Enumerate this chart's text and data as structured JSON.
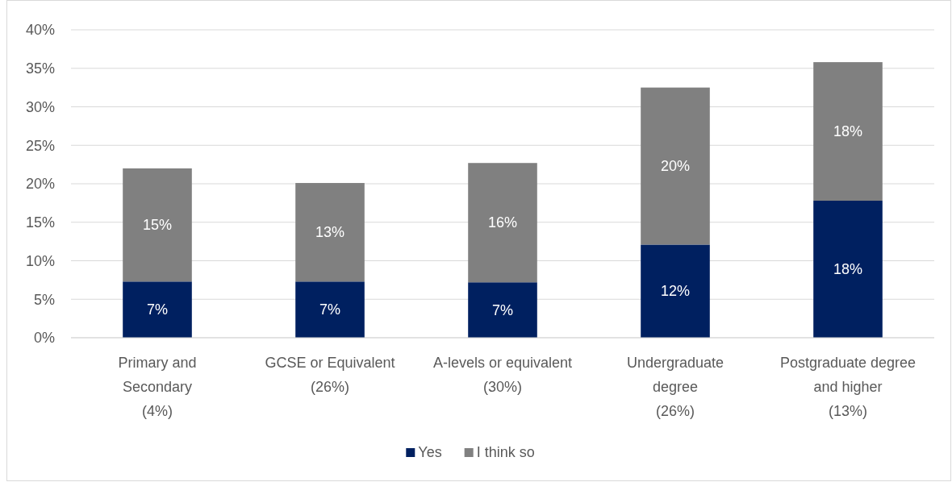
{
  "chart_data": {
    "type": "bar",
    "stacked": true,
    "categories": [
      "Primary and\nSecondary\n(4%)",
      "GCSE or Equivalent\n(26%)",
      "A-levels or equivalent\n(30%)",
      "Undergraduate\ndegree\n(26%)",
      "Postgraduate degree\nand higher\n(13%)"
    ],
    "series": [
      {
        "name": "Yes",
        "color": "#002060",
        "values": [
          7.3,
          7.3,
          7.2,
          12.1,
          17.8
        ],
        "value_labels": [
          "7%",
          "7%",
          "7%",
          "12%",
          "18%"
        ]
      },
      {
        "name": "I think so",
        "color": "#808080",
        "values": [
          14.7,
          12.8,
          15.5,
          20.4,
          18.0
        ],
        "value_labels": [
          "15%",
          "13%",
          "16%",
          "20%",
          "18%"
        ]
      }
    ],
    "ylim": [
      0,
      40
    ],
    "yticks": [
      {
        "value": 0,
        "label": "0%"
      },
      {
        "value": 5,
        "label": "5%"
      },
      {
        "value": 10,
        "label": "10%"
      },
      {
        "value": 15,
        "label": "15%"
      },
      {
        "value": 20,
        "label": "20%"
      },
      {
        "value": 25,
        "label": "25%"
      },
      {
        "value": 30,
        "label": "30%"
      },
      {
        "value": 35,
        "label": "35%"
      },
      {
        "value": 40,
        "label": "40%"
      }
    ],
    "grid": "y",
    "legend": "bottom"
  }
}
